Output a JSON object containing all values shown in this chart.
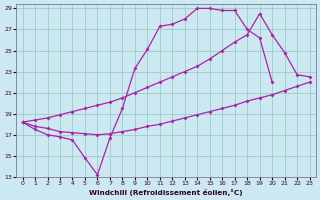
{
  "xlabel": "Windchill (Refroidissement éolien,°C)",
  "background_color": "#cce8f0",
  "line_color": "#aa22aa",
  "grid_color": "#99cccc",
  "xlim": [
    -0.5,
    23.5
  ],
  "ylim": [
    13,
    29.4
  ],
  "xticks": [
    0,
    1,
    2,
    3,
    4,
    5,
    6,
    7,
    8,
    9,
    10,
    11,
    12,
    13,
    14,
    15,
    16,
    17,
    18,
    19,
    20,
    21,
    22,
    23
  ],
  "yticks": [
    13,
    15,
    17,
    19,
    21,
    23,
    25,
    27,
    29
  ],
  "l1x": [
    0,
    1,
    2,
    3,
    4,
    5,
    6,
    7,
    8,
    9,
    10,
    11,
    12,
    13,
    14,
    15,
    16,
    17,
    18,
    19,
    20
  ],
  "l1y": [
    18.2,
    17.5,
    17.0,
    16.8,
    16.5,
    14.8,
    13.2,
    16.7,
    19.5,
    23.3,
    25.1,
    27.3,
    27.5,
    28.0,
    29.0,
    29.0,
    28.8,
    28.8,
    27.0,
    26.2,
    22.0
  ],
  "l2x": [
    0,
    1,
    2,
    3,
    4,
    5,
    6,
    7,
    8,
    9,
    10,
    11,
    12,
    13,
    14,
    15,
    16,
    17,
    18,
    19,
    20,
    21,
    22,
    23
  ],
  "l2y": [
    18.2,
    18.4,
    18.6,
    18.9,
    19.2,
    19.5,
    19.8,
    20.1,
    20.5,
    21.0,
    21.5,
    22.0,
    22.5,
    23.0,
    23.5,
    24.2,
    25.0,
    25.8,
    26.5,
    28.5,
    26.5,
    24.8,
    22.7,
    22.5
  ],
  "l3x": [
    0,
    1,
    2,
    3,
    4,
    5,
    6,
    7,
    8,
    9,
    10,
    11,
    12,
    13,
    14,
    15,
    16,
    17,
    18,
    19,
    20,
    21,
    22,
    23
  ],
  "l3y": [
    18.2,
    17.8,
    17.6,
    17.3,
    17.2,
    17.1,
    17.0,
    17.1,
    17.3,
    17.5,
    17.8,
    18.0,
    18.3,
    18.6,
    18.9,
    19.2,
    19.5,
    19.8,
    20.2,
    20.5,
    20.8,
    21.2,
    21.6,
    22.0
  ]
}
